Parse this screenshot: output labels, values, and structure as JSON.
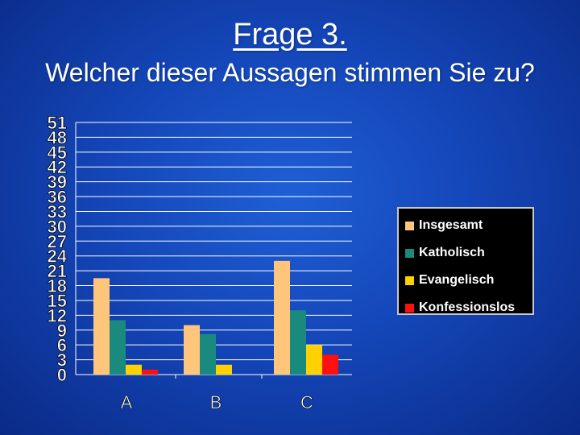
{
  "slide": {
    "title": "Frage 3.",
    "subtitle": "Welcher dieser Aussagen stimmen Sie zu?"
  },
  "chart_data": {
    "type": "bar",
    "categories": [
      "A",
      "B",
      "C"
    ],
    "series": [
      {
        "name": "Insgesamt",
        "color": "#ffc57a",
        "values": [
          19.5,
          10,
          23
        ]
      },
      {
        "name": "Katholisch",
        "color": "#1a8a7f",
        "values": [
          11,
          8.2,
          13
        ]
      },
      {
        "name": "Evangelisch",
        "color": "#ffd100",
        "values": [
          2,
          2,
          6
        ]
      },
      {
        "name": "Konfessionslos",
        "color": "#ff1010",
        "values": [
          1,
          0,
          4
        ]
      }
    ],
    "yticks": [
      "51",
      "48",
      "45",
      "42",
      "39",
      "36",
      "33",
      "30",
      "27",
      "24",
      "21",
      "18",
      "15",
      "12",
      "9",
      "6",
      "3",
      "0"
    ],
    "ylim": [
      0,
      51
    ],
    "grid": true,
    "legend_position": "right"
  }
}
